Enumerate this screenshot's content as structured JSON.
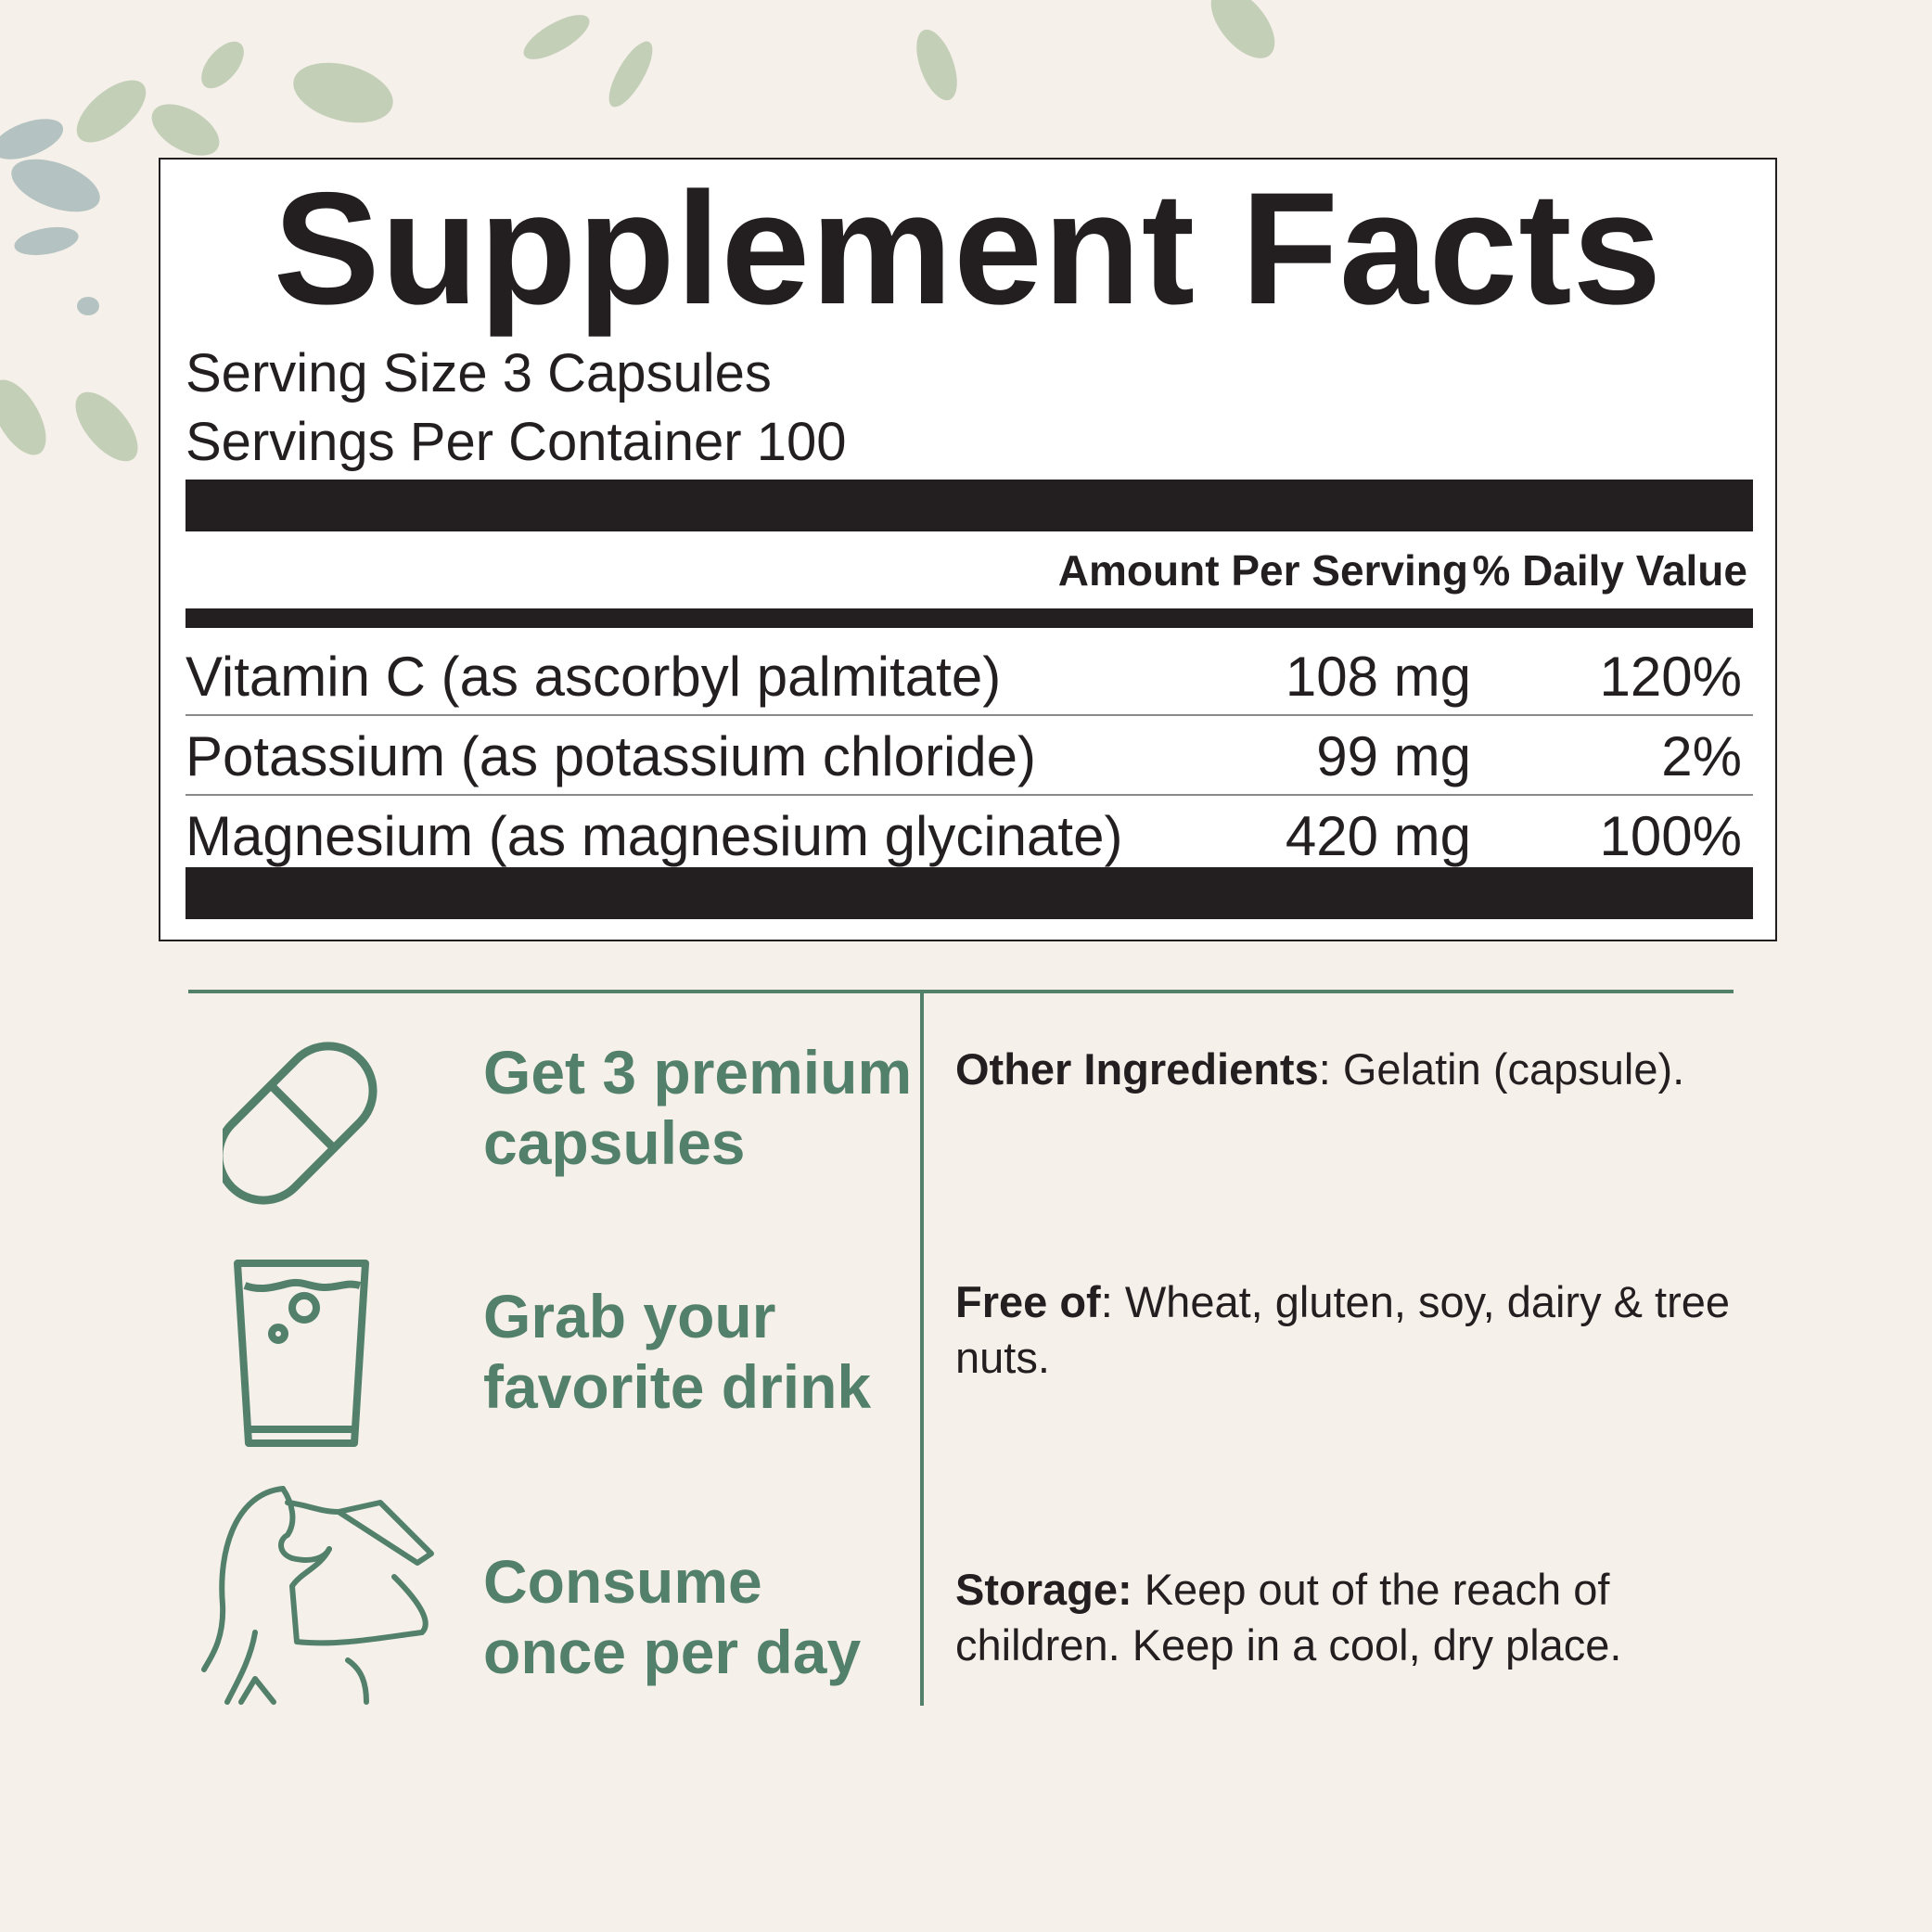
{
  "title": "Supplement Facts",
  "serving_size": "Serving Size 3 Capsules",
  "servings_per_container": "Servings Per Container 100",
  "headers": {
    "amount": "Amount Per Serving",
    "dv": "% Daily Value"
  },
  "rows": [
    {
      "name": "Vitamin C (as ascorbyl palmitate)",
      "amount": "108 mg",
      "dv": "120%"
    },
    {
      "name": "Potassium (as potassium chloride)",
      "amount": "99 mg",
      "dv": "2%"
    },
    {
      "name": "Magnesium (as magnesium glycinate)",
      "amount": "420 mg",
      "dv": "100%"
    }
  ],
  "steps": [
    {
      "icon": "capsule-icon",
      "line1": "Get 3 premium",
      "line2": "capsules"
    },
    {
      "icon": "glass-icon",
      "line1": "Grab your",
      "line2": "favorite drink"
    },
    {
      "icon": "woman-drinking-icon",
      "line1": "Consume",
      "line2": "once per day"
    }
  ],
  "info": [
    {
      "label": "Other Ingredients",
      "text": ": Gelatin (capsule)."
    },
    {
      "label": "Free of",
      "text": ": Wheat, gluten, soy, dairy & tree nuts."
    },
    {
      "label": "Storage:",
      "text": " Keep out of the reach of children. Keep in a cool, dry place."
    }
  ],
  "colors": {
    "accent": "#52806a",
    "background": "#f6f0ea",
    "text": "#231f20"
  }
}
